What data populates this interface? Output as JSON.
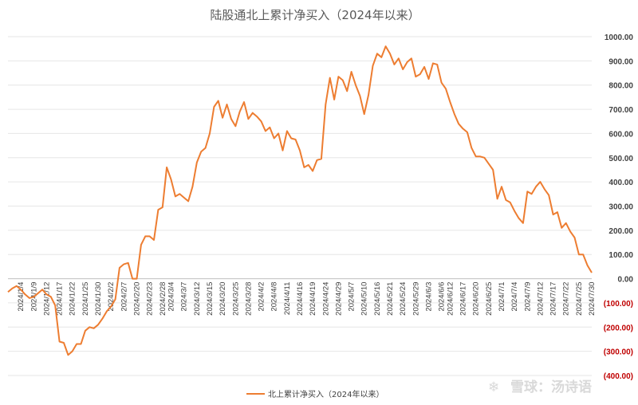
{
  "chart_data": {
    "type": "line",
    "title": "陆股通北上累计净买入（2024年以来）",
    "xlabel": "",
    "ylabel": "",
    "ylim": [
      -400,
      1000
    ],
    "yticks": [
      1000,
      900,
      800,
      700,
      600,
      500,
      400,
      300,
      200,
      100,
      0,
      -100,
      -200,
      -300,
      -400
    ],
    "ytick_labels": [
      "1000.00",
      "900.00",
      "800.00",
      "700.00",
      "600.00",
      "500.00",
      "400.00",
      "300.00",
      "200.00",
      "100.00",
      "0.00",
      "(100.00)",
      "(200.00)",
      "(300.00)",
      "(400.00)"
    ],
    "y_axis_side": "right",
    "negative_label_color": "#c00000",
    "grid": true,
    "legend_position": "bottom-center",
    "xtick_labels": [
      "2024/1/4",
      "2024/1/9",
      "2024/1/12",
      "2024/1/17",
      "2024/1/22",
      "2024/1/25",
      "2024/1/30",
      "2024/2/2",
      "2024/2/7",
      "2024/2/20",
      "2024/2/23",
      "2024/2/28",
      "2024/3/4",
      "2024/3/7",
      "2024/3/12",
      "2024/3/15",
      "2024/3/20",
      "2024/3/25",
      "2024/3/28",
      "2024/4/2",
      "2024/4/8",
      "2024/4/11",
      "2024/4/16",
      "2024/4/19",
      "2024/4/24",
      "2024/4/29",
      "2024/5/7",
      "2024/5/10",
      "2024/5/16",
      "2024/5/21",
      "2024/5/24",
      "2024/5/29",
      "2024/6/3",
      "2024/6/6",
      "2024/6/12",
      "2024/6/17",
      "2024/6/20",
      "2024/6/25",
      "2024/7/1",
      "2024/7/4",
      "2024/7/9",
      "2024/7/12",
      "2024/7/17",
      "2024/7/22",
      "2024/7/25",
      "2024/7/30"
    ],
    "series": [
      {
        "name": "北上累计净买入（2024年以来）",
        "color": "#ed7d31",
        "values": [
          -55,
          -40,
          -30,
          -45,
          -65,
          -80,
          -75,
          -60,
          -45,
          -65,
          -75,
          -110,
          -260,
          -265,
          -315,
          -300,
          -270,
          -270,
          -215,
          -200,
          -205,
          -190,
          -165,
          -135,
          -115,
          -85,
          45,
          60,
          65,
          0,
          0,
          140,
          175,
          175,
          160,
          285,
          295,
          460,
          410,
          340,
          350,
          335,
          320,
          380,
          480,
          525,
          540,
          600,
          710,
          735,
          665,
          720,
          660,
          630,
          690,
          730,
          660,
          685,
          670,
          650,
          610,
          625,
          580,
          600,
          530,
          610,
          580,
          575,
          530,
          460,
          470,
          445,
          490,
          495,
          720,
          830,
          740,
          835,
          820,
          775,
          855,
          800,
          755,
          680,
          760,
          880,
          930,
          915,
          960,
          930,
          885,
          910,
          865,
          895,
          910,
          835,
          845,
          875,
          825,
          890,
          885,
          810,
          785,
          730,
          680,
          640,
          620,
          605,
          540,
          505,
          505,
          500,
          475,
          450,
          330,
          380,
          325,
          315,
          280,
          250,
          230,
          360,
          350,
          380,
          400,
          370,
          345,
          265,
          275,
          210,
          230,
          195,
          170,
          100,
          100,
          55,
          25
        ]
      }
    ]
  },
  "watermark": {
    "logo_glyph": "❄",
    "text": "雪球：汤诗语"
  }
}
